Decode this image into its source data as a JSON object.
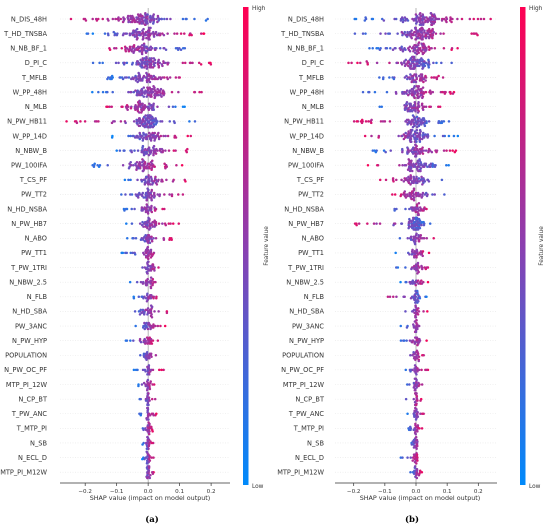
{
  "chart_data": [
    {
      "type": "scatter",
      "subtype": "beeswarm",
      "panel_label": "(a)",
      "xlabel": "SHAP value (impact on model output)",
      "xlim": [
        -0.28,
        0.26
      ],
      "xticks": [
        -0.2,
        -0.1,
        0.0,
        0.1,
        0.2
      ],
      "xtick_labels": [
        "−0.2",
        "−0.1",
        "0.0",
        "0.1",
        "0.2"
      ],
      "colorbar": {
        "label": "Feature value",
        "high": "High",
        "low": "Low"
      },
      "features": [
        {
          "name": "N_DIS_48H",
          "min": -0.25,
          "max": 0.22,
          "core": 0.11,
          "center": -0.02,
          "color_trend": -1
        },
        {
          "name": "T_HD_TNSBA",
          "min": -0.2,
          "max": 0.18,
          "core": 0.09,
          "center": -0.01,
          "color_trend": 1
        },
        {
          "name": "N_NB_BF_1",
          "min": -0.16,
          "max": 0.14,
          "core": 0.08,
          "center": -0.03,
          "color_trend": -1
        },
        {
          "name": "D_PI_C",
          "min": -0.18,
          "max": 0.2,
          "core": 0.07,
          "center": 0.0,
          "color_trend": 1
        },
        {
          "name": "T_MFLB",
          "min": -0.15,
          "max": 0.14,
          "core": 0.07,
          "center": -0.01,
          "color_trend": 1
        },
        {
          "name": "W_PP_48H",
          "min": -0.18,
          "max": 0.18,
          "core": 0.08,
          "center": 0.01,
          "color_trend": 1
        },
        {
          "name": "N_MLB",
          "min": -0.14,
          "max": 0.13,
          "core": 0.07,
          "center": -0.02,
          "color_trend": -1
        },
        {
          "name": "N_PW_HB11",
          "min": -0.26,
          "max": 0.15,
          "core": 0.06,
          "center": 0.0,
          "color_trend": -1
        },
        {
          "name": "W_PP_14D",
          "min": -0.12,
          "max": 0.14,
          "core": 0.07,
          "center": 0.0,
          "color_trend": 1
        },
        {
          "name": "N_NBW_B",
          "min": -0.11,
          "max": 0.13,
          "core": 0.06,
          "center": 0.0,
          "color_trend": 1
        },
        {
          "name": "PW_100IFA",
          "min": -0.18,
          "max": 0.11,
          "core": 0.07,
          "center": -0.01,
          "color_trend": 1
        },
        {
          "name": "T_CS_PF",
          "min": -0.09,
          "max": 0.12,
          "core": 0.05,
          "center": 0.01,
          "color_trend": 1
        },
        {
          "name": "PW_TT2",
          "min": -0.1,
          "max": 0.12,
          "core": 0.05,
          "center": 0.0,
          "color_trend": 1
        },
        {
          "name": "N_HD_NSBA",
          "min": -0.08,
          "max": 0.07,
          "core": 0.04,
          "center": 0.0,
          "color_trend": 1
        },
        {
          "name": "N_PW_HB7",
          "min": -0.09,
          "max": 0.1,
          "core": 0.04,
          "center": 0.0,
          "color_trend": 1
        },
        {
          "name": "N_ABO",
          "min": -0.07,
          "max": 0.08,
          "core": 0.04,
          "center": 0.0,
          "color_trend": 1
        },
        {
          "name": "PW_TT1",
          "min": -0.09,
          "max": 0.06,
          "core": 0.03,
          "center": 0.0,
          "color_trend": 1
        },
        {
          "name": "T_PW_1TRI",
          "min": -0.06,
          "max": 0.06,
          "core": 0.03,
          "center": 0.0,
          "color_trend": 1
        },
        {
          "name": "N_NBW_2.5",
          "min": -0.06,
          "max": 0.05,
          "core": 0.03,
          "center": 0.0,
          "color_trend": 1
        },
        {
          "name": "N_FLB",
          "min": -0.05,
          "max": 0.05,
          "core": 0.03,
          "center": 0.0,
          "color_trend": 1
        },
        {
          "name": "N_HD_SBA",
          "min": -0.07,
          "max": 0.07,
          "core": 0.03,
          "center": 0.0,
          "color_trend": 1
        },
        {
          "name": "PW_3ANC",
          "min": -0.05,
          "max": 0.06,
          "core": 0.03,
          "center": 0.0,
          "color_trend": 1
        },
        {
          "name": "N_PW_HYP",
          "min": -0.08,
          "max": 0.04,
          "core": 0.02,
          "center": 0.0,
          "color_trend": 1
        },
        {
          "name": "POPULATION",
          "min": -0.04,
          "max": 0.04,
          "core": 0.02,
          "center": 0.0,
          "color_trend": 1
        },
        {
          "name": "N_PW_OC_PF",
          "min": -0.05,
          "max": 0.05,
          "core": 0.02,
          "center": 0.0,
          "color_trend": 1
        },
        {
          "name": "MTP_PI_12W",
          "min": -0.04,
          "max": 0.03,
          "core": 0.02,
          "center": 0.0,
          "color_trend": 1
        },
        {
          "name": "N_CP_BT",
          "min": -0.03,
          "max": 0.03,
          "core": 0.01,
          "center": 0.0,
          "color_trend": 1
        },
        {
          "name": "T_PW_ANC",
          "min": -0.03,
          "max": 0.03,
          "core": 0.01,
          "center": 0.0,
          "color_trend": 1
        },
        {
          "name": "T_MTP_PI",
          "min": -0.03,
          "max": 0.02,
          "core": 0.01,
          "center": 0.0,
          "color_trend": 1
        },
        {
          "name": "N_SB",
          "min": -0.02,
          "max": 0.02,
          "core": 0.01,
          "center": 0.0,
          "color_trend": 1
        },
        {
          "name": "N_ECL_D",
          "min": -0.02,
          "max": 0.02,
          "core": 0.01,
          "center": 0.0,
          "color_trend": 1
        },
        {
          "name": "MTP_PI_M12W",
          "min": -0.02,
          "max": 0.02,
          "core": 0.01,
          "center": 0.0,
          "color_trend": 1
        }
      ]
    },
    {
      "type": "scatter",
      "subtype": "beeswarm",
      "panel_label": "(b)",
      "xlabel": "SHAP value (impact on model output)",
      "xlim": [
        -0.26,
        0.26
      ],
      "xticks": [
        -0.2,
        -0.1,
        0.0,
        0.1,
        0.2
      ],
      "xtick_labels": [
        "−0.2",
        "−0.1",
        "0.0",
        "0.1",
        "0.2"
      ],
      "colorbar": {
        "label": "Feature value",
        "high": "High",
        "low": "Low"
      },
      "features": [
        {
          "name": "N_DIS_48H",
          "min": -0.2,
          "max": 0.25,
          "core": 0.11,
          "center": 0.03,
          "color_trend": 1
        },
        {
          "name": "T_HD_TNSBA",
          "min": -0.22,
          "max": 0.2,
          "core": 0.09,
          "center": 0.01,
          "color_trend": 1
        },
        {
          "name": "N_NB_BF_1",
          "min": -0.16,
          "max": 0.14,
          "core": 0.08,
          "center": 0.0,
          "color_trend": 1
        },
        {
          "name": "D_PI_C",
          "min": -0.22,
          "max": 0.16,
          "core": 0.07,
          "center": 0.0,
          "color_trend": -1
        },
        {
          "name": "T_MFLB",
          "min": -0.12,
          "max": 0.1,
          "core": 0.06,
          "center": 0.0,
          "color_trend": 1
        },
        {
          "name": "W_PP_48H",
          "min": -0.18,
          "max": 0.14,
          "core": 0.07,
          "center": 0.0,
          "color_trend": 1
        },
        {
          "name": "N_MLB",
          "min": -0.13,
          "max": 0.1,
          "core": 0.06,
          "center": 0.0,
          "color_trend": 1
        },
        {
          "name": "N_PW_HB11",
          "min": -0.2,
          "max": 0.12,
          "core": 0.07,
          "center": 0.0,
          "color_trend": -1
        },
        {
          "name": "W_PP_14D",
          "min": -0.2,
          "max": 0.14,
          "core": 0.06,
          "center": 0.0,
          "color_trend": -1
        },
        {
          "name": "N_NBW_B",
          "min": -0.14,
          "max": 0.13,
          "core": 0.06,
          "center": 0.0,
          "color_trend": 1
        },
        {
          "name": "PW_100IFA",
          "min": -0.16,
          "max": 0.12,
          "core": 0.06,
          "center": 0.0,
          "color_trend": -1
        },
        {
          "name": "T_CS_PF",
          "min": -0.12,
          "max": 0.1,
          "core": 0.05,
          "center": 0.0,
          "color_trend": -1
        },
        {
          "name": "PW_TT2",
          "min": -0.09,
          "max": 0.11,
          "core": 0.05,
          "center": 0.0,
          "color_trend": -1
        },
        {
          "name": "N_HD_NSBA",
          "min": -0.08,
          "max": 0.06,
          "core": 0.04,
          "center": 0.0,
          "color_trend": 1
        },
        {
          "name": "N_PW_HB7",
          "min": -0.22,
          "max": 0.08,
          "core": 0.04,
          "center": 0.0,
          "color_trend": -1
        },
        {
          "name": "N_ABO",
          "min": -0.06,
          "max": 0.07,
          "core": 0.03,
          "center": 0.0,
          "color_trend": 1
        },
        {
          "name": "PW_TT1",
          "min": -0.07,
          "max": 0.05,
          "core": 0.03,
          "center": 0.0,
          "color_trend": 1
        },
        {
          "name": "T_PW_1TRI",
          "min": -0.07,
          "max": 0.05,
          "core": 0.03,
          "center": 0.0,
          "color_trend": 1
        },
        {
          "name": "N_NBW_2.5",
          "min": -0.05,
          "max": 0.04,
          "core": 0.03,
          "center": 0.0,
          "color_trend": 1
        },
        {
          "name": "N_FLB",
          "min": -0.1,
          "max": 0.04,
          "core": 0.02,
          "center": 0.0,
          "color_trend": -1
        },
        {
          "name": "N_HD_SBA",
          "min": -0.05,
          "max": 0.04,
          "core": 0.02,
          "center": 0.0,
          "color_trend": 1
        },
        {
          "name": "PW_3ANC",
          "min": -0.05,
          "max": 0.04,
          "core": 0.02,
          "center": 0.0,
          "color_trend": 1
        },
        {
          "name": "N_PW_HYP",
          "min": -0.06,
          "max": 0.04,
          "core": 0.02,
          "center": 0.0,
          "color_trend": 1
        },
        {
          "name": "POPULATION",
          "min": -0.04,
          "max": 0.03,
          "core": 0.02,
          "center": 0.0,
          "color_trend": 1
        },
        {
          "name": "N_PW_OC_PF",
          "min": -0.04,
          "max": 0.04,
          "core": 0.02,
          "center": 0.0,
          "color_trend": 1
        },
        {
          "name": "MTP_PI_12W",
          "min": -0.03,
          "max": 0.03,
          "core": 0.01,
          "center": 0.0,
          "color_trend": 1
        },
        {
          "name": "N_CP_BT",
          "min": -0.04,
          "max": 0.02,
          "core": 0.01,
          "center": 0.0,
          "color_trend": 1
        },
        {
          "name": "T_PW_ANC",
          "min": -0.03,
          "max": 0.03,
          "core": 0.01,
          "center": 0.0,
          "color_trend": 1
        },
        {
          "name": "T_MTP_PI",
          "min": -0.03,
          "max": 0.02,
          "core": 0.01,
          "center": 0.0,
          "color_trend": 1
        },
        {
          "name": "N_SB",
          "min": -0.02,
          "max": 0.02,
          "core": 0.01,
          "center": 0.0,
          "color_trend": 1
        },
        {
          "name": "N_ECL_D",
          "min": -0.06,
          "max": 0.02,
          "core": 0.01,
          "center": 0.0,
          "color_trend": 1
        },
        {
          "name": "MTP_PI_M12W",
          "min": -0.02,
          "max": 0.02,
          "core": 0.01,
          "center": 0.0,
          "color_trend": 1
        }
      ]
    }
  ],
  "colors": {
    "low": "#008afb",
    "high": "#ff0052",
    "zero_line": "#999999",
    "row_line": "#e6e6e6"
  }
}
